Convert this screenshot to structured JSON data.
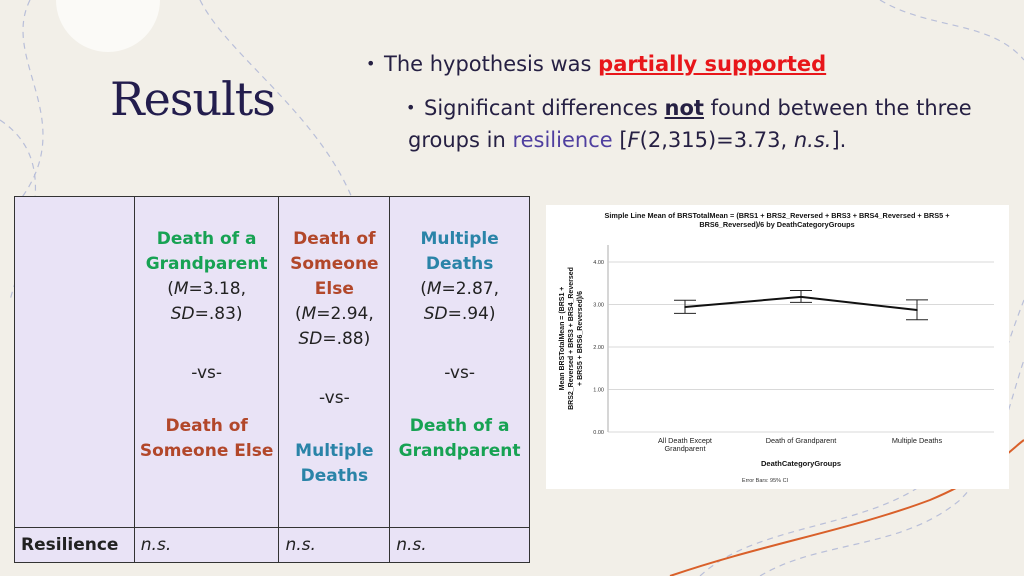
{
  "slide": {
    "title": "Results",
    "bullet1": {
      "prefix": "The hypothesis was ",
      "emphasis": "partially supported"
    },
    "bullet2": {
      "part1": "Significant differences ",
      "emphasis": "not",
      "part2": " found between the three groups in ",
      "highlight": "resilience",
      "stat_open": " [",
      "stat_F": "F",
      "stat_mid": "(2,315)=3.73, ",
      "stat_ns": "n.s.",
      "stat_close": "]."
    }
  },
  "table": {
    "columns": [
      {
        "group": "Death of a Grandparent",
        "group_color": "green",
        "m": "=3.18,",
        "sd": "=.83)",
        "vs": "-vs-",
        "compare": "Death of Someone Else",
        "compare_color": "orange"
      },
      {
        "group": "Death of Someone Else",
        "group_color": "orange",
        "m": "=2.94,",
        "sd": "=.88)",
        "vs": "-vs-",
        "compare": "Multiple Deaths",
        "compare_color": "teal"
      },
      {
        "group": "Multiple Deaths",
        "group_color": "teal",
        "m": "=2.87,",
        "sd": "=.94)",
        "vs": "-vs-",
        "compare": "Death of a Grandparent",
        "compare_color": "green"
      }
    ],
    "m_label": "M",
    "sd_label": "SD",
    "row_label": "Resilience",
    "row_values": [
      "n.s.",
      "n.s.",
      "n.s."
    ]
  },
  "colors": {
    "green": "#17a253",
    "orange": "#b2472a",
    "teal": "#2a84a8",
    "red": "#e8161a",
    "title": "#231d4d"
  },
  "chart_data": {
    "type": "line",
    "title": "Simple Line Mean of BRSTotalMean = (BRS1 + BRS2_Reversed + BRS3 + BRS4_Reversed + BRS5 + BRS6_Reversed)/6 by DeathCategoryGroups",
    "title_lines": [
      "Simple Line Mean of BRSTotalMean = (BRS1 + BRS2_Reversed + BRS3 + BRS4_Reversed + BRS5 +",
      "BRS6_Reversed)/6 by DeathCategoryGroups"
    ],
    "xlabel": "DeathCategoryGroups",
    "ylabel_lines": [
      "Mean BRSTotalMean = (BRS1 +",
      "BRS2_Reversed + BRS3 + BRS4_Reversed",
      "+ BRS5 + BRS6_Reversed)/6"
    ],
    "categories": [
      [
        "All Death Except",
        "Grandparent"
      ],
      [
        "Death of Grandparent"
      ],
      [
        "Multiple Deaths"
      ]
    ],
    "values": [
      2.94,
      3.18,
      2.87
    ],
    "ci_low": [
      2.79,
      3.05,
      2.64
    ],
    "ci_high": [
      3.1,
      3.33,
      3.11
    ],
    "yticks": [
      "0.00",
      "1.00",
      "2.00",
      "3.00",
      "4.00"
    ],
    "ylim": [
      0,
      4.4
    ],
    "grid": true,
    "footnote": "Error Bars: 95% CI"
  }
}
